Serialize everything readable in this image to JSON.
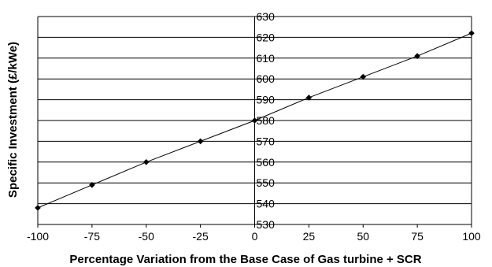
{
  "chart_data": {
    "type": "line",
    "title": "",
    "xlabel": "Percentage Variation from the Base Case of Gas turbine + SCR",
    "ylabel": "Specific Investment (£/kWe)",
    "xlim": [
      -100,
      100
    ],
    "ylim": [
      530,
      630
    ],
    "x_ticks": [
      "-100",
      "-75",
      "-50",
      "-25",
      "0",
      "25",
      "50",
      "75",
      "100"
    ],
    "y_ticks": [
      "530",
      "540",
      "550",
      "560",
      "570",
      "580",
      "590",
      "600",
      "610",
      "620",
      "630"
    ],
    "grid": "horizontal",
    "legend": "none",
    "colors": {
      "line": "#000000",
      "grid": "#000000",
      "marker": "#000000"
    },
    "series": [
      {
        "x": [
          -100,
          -75,
          -50,
          -25,
          0,
          25,
          50,
          75,
          100
        ],
        "y": [
          538,
          549,
          560,
          570,
          580,
          591,
          601,
          611,
          622
        ]
      }
    ]
  }
}
